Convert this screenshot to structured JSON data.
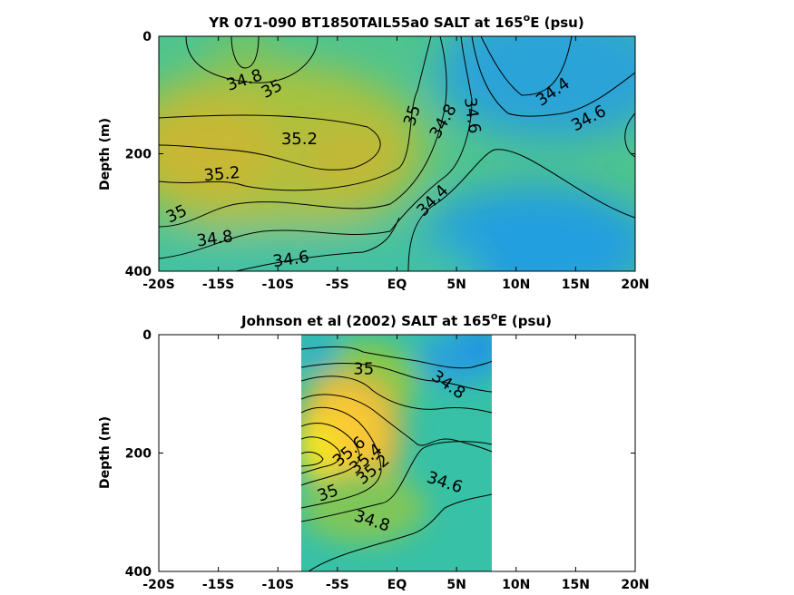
{
  "colors": {
    "low": "#1a9fe0",
    "mid": "#35c2a0",
    "mid_high": "#86c84a",
    "high": "#c7b830",
    "peak": "#f9c935",
    "max": "#f5e81a",
    "background": "#ffffff",
    "line": "#000000"
  },
  "chart_data": [
    {
      "type": "heatmap",
      "title": "YR 071-090 BT1850TAIL55a0 SALT at 165",
      "title_sup": "o",
      "title_suffix": "E (psu)",
      "xlabel": "",
      "ylabel": "Depth (m)",
      "xlim": [
        -20,
        20
      ],
      "ylim": [
        400,
        0
      ],
      "x_ticks": [
        -20,
        -15,
        -10,
        -5,
        0,
        5,
        10,
        15,
        20
      ],
      "x_tick_labels": [
        "-20S",
        "-15S",
        "-10S",
        "-5S",
        "EQ",
        "5N",
        "10N",
        "15N",
        "20N"
      ],
      "y_ticks": [
        0,
        200,
        400
      ],
      "y_tick_labels": [
        "0",
        "200",
        "400"
      ],
      "contour_levels": [
        34.4,
        34.6,
        34.8,
        35.0,
        35.2
      ],
      "data_extent": [
        -20,
        20
      ],
      "contour_labels": [
        {
          "text": "34.8",
          "x": -12.8,
          "y": 75,
          "angle": -18
        },
        {
          "text": "35",
          "x": -10.5,
          "y": 90,
          "angle": -28
        },
        {
          "text": "35.2",
          "x": -8.2,
          "y": 175,
          "angle": 0
        },
        {
          "text": "35.2",
          "x": -14.7,
          "y": 235,
          "angle": -5
        },
        {
          "text": "35",
          "x": -18.5,
          "y": 303,
          "angle": -25
        },
        {
          "text": "34.8",
          "x": -15.3,
          "y": 345,
          "angle": -8
        },
        {
          "text": "34.6",
          "x": -8.9,
          "y": 380,
          "angle": -8
        },
        {
          "text": "35",
          "x": 1.3,
          "y": 135,
          "angle": -72
        },
        {
          "text": "34.8",
          "x": 3.9,
          "y": 145,
          "angle": -60
        },
        {
          "text": "34.6",
          "x": 6.3,
          "y": 135,
          "angle": 82
        },
        {
          "text": "34.4",
          "x": 3.0,
          "y": 280,
          "angle": -45
        },
        {
          "text": "34.4",
          "x": 13.1,
          "y": 95,
          "angle": -35
        },
        {
          "text": "34.6",
          "x": 16.1,
          "y": 140,
          "angle": -28
        }
      ]
    },
    {
      "type": "heatmap",
      "title": "Johnson et al (2002) SALT at 165",
      "title_sup": "o",
      "title_suffix": "E (psu)",
      "xlabel": "",
      "ylabel": "Depth (m)",
      "xlim": [
        -20,
        20
      ],
      "ylim": [
        400,
        0
      ],
      "x_ticks": [
        -20,
        -15,
        -10,
        -5,
        0,
        5,
        10,
        15,
        20
      ],
      "x_tick_labels": [
        "-20S",
        "-15S",
        "-10S",
        "-5S",
        "EQ",
        "5N",
        "10N",
        "15N",
        "20N"
      ],
      "y_ticks": [
        0,
        200,
        400
      ],
      "y_tick_labels": [
        "0",
        "200",
        "400"
      ],
      "contour_levels": [
        34.6,
        34.8,
        35.0,
        35.2,
        35.4,
        35.6
      ],
      "data_extent": [
        -8,
        8
      ],
      "contour_labels": [
        {
          "text": "35",
          "x": -2.8,
          "y": 58,
          "angle": 0
        },
        {
          "text": "34.8",
          "x": 4.3,
          "y": 85,
          "angle": 35
        },
        {
          "text": "35.6",
          "x": -4.0,
          "y": 198,
          "angle": -40
        },
        {
          "text": "35.4",
          "x": -2.6,
          "y": 210,
          "angle": -40
        },
        {
          "text": "35.2",
          "x": -2.0,
          "y": 228,
          "angle": -40
        },
        {
          "text": "34.6",
          "x": 4.0,
          "y": 250,
          "angle": 18
        },
        {
          "text": "35",
          "x": -5.8,
          "y": 268,
          "angle": -20
        },
        {
          "text": "34.8",
          "x": -2.1,
          "y": 315,
          "angle": 18
        }
      ]
    }
  ]
}
